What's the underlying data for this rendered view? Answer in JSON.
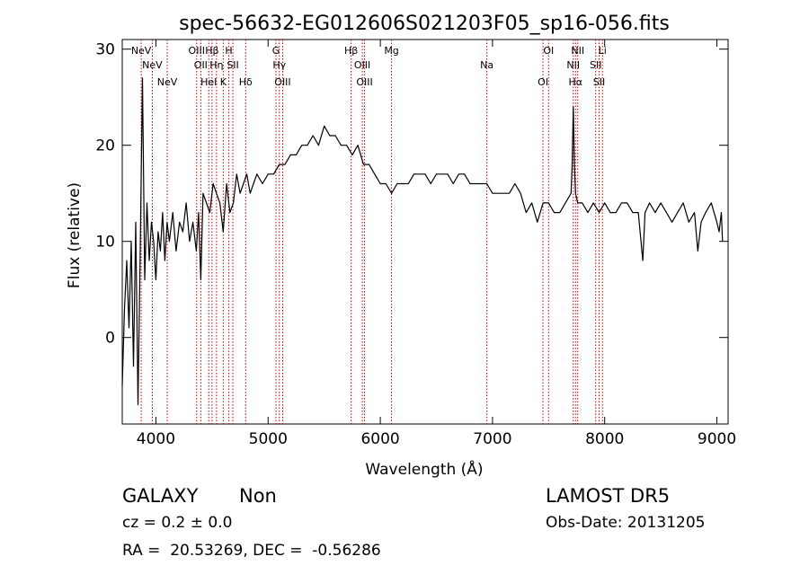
{
  "chart_data": {
    "type": "line",
    "title": "spec-56632-EG012606S021203F05_sp16-056.fits",
    "xlabel": "Wavelength (Å)",
    "ylabel": "Flux (relative)",
    "xlim": [
      3700,
      9100
    ],
    "ylim": [
      -9,
      31
    ],
    "x_ticks": [
      4000,
      5000,
      6000,
      7000,
      8000,
      9000
    ],
    "y_ticks": [
      0,
      10,
      20,
      30
    ],
    "grid": false,
    "line_color": "#000000",
    "marker_color": "#c00000",
    "series": [
      {
        "x": [
          3700,
          3720,
          3740,
          3760,
          3780,
          3800,
          3820,
          3840,
          3860,
          3880,
          3900,
          3920,
          3940,
          3960,
          3980,
          4000,
          4020,
          4040,
          4060,
          4080,
          4100,
          4120,
          4150,
          4180,
          4210,
          4240,
          4270,
          4300,
          4330,
          4360,
          4380,
          4400,
          4420,
          4450,
          4480,
          4510,
          4540,
          4570,
          4600,
          4630,
          4660,
          4690,
          4720,
          4750,
          4780,
          4810,
          4840,
          4870,
          4900,
          4950,
          5000,
          5050,
          5100,
          5150,
          5200,
          5250,
          5300,
          5350,
          5400,
          5450,
          5500,
          5550,
          5600,
          5650,
          5700,
          5750,
          5800,
          5850,
          5900,
          5950,
          6000,
          6050,
          6100,
          6150,
          6200,
          6250,
          6300,
          6350,
          6400,
          6450,
          6500,
          6550,
          6600,
          6650,
          6700,
          6750,
          6800,
          6850,
          6900,
          6950,
          7000,
          7050,
          7100,
          7150,
          7200,
          7250,
          7300,
          7350,
          7400,
          7450,
          7500,
          7550,
          7600,
          7650,
          7700,
          7710,
          7720,
          7730,
          7740,
          7760,
          7800,
          7850,
          7900,
          7950,
          8000,
          8050,
          8100,
          8150,
          8200,
          8250,
          8300,
          8340,
          8360,
          8400,
          8450,
          8500,
          8550,
          8600,
          8650,
          8700,
          8750,
          8800,
          8830,
          8860,
          8900,
          8950,
          9000,
          9020,
          9040,
          9050
        ],
        "y": [
          -5,
          3,
          8,
          1,
          10,
          -3,
          12,
          -7,
          9,
          27,
          6,
          14,
          8,
          12,
          10,
          6,
          11,
          9,
          13,
          8,
          12,
          10,
          13,
          9,
          12,
          11,
          14,
          10,
          12,
          9,
          13,
          6,
          15,
          14,
          13,
          16,
          15,
          14,
          11,
          16,
          13,
          14,
          17,
          15,
          16,
          17,
          15,
          16,
          17,
          16,
          17,
          17,
          18,
          18,
          19,
          19,
          20,
          20,
          21,
          20,
          22,
          21,
          21,
          20,
          20,
          19,
          20,
          18,
          18,
          17,
          16,
          16,
          15,
          16,
          16,
          16,
          17,
          17,
          17,
          16,
          17,
          17,
          17,
          16,
          17,
          17,
          16,
          16,
          16,
          16,
          15,
          15,
          15,
          15,
          16,
          15,
          13,
          14,
          12,
          14,
          14,
          13,
          13,
          14,
          15,
          18,
          24,
          18,
          15,
          14,
          14,
          13,
          14,
          13,
          14,
          13,
          13,
          14,
          14,
          13,
          13,
          8,
          13,
          14,
          13,
          14,
          13,
          12,
          13,
          14,
          12,
          13,
          9,
          12,
          13,
          14,
          12,
          11,
          13,
          10
        ]
      }
    ],
    "line_markers": [
      {
        "wavelength": 3869,
        "label": "NeV"
      },
      {
        "wavelength": 3968,
        "label": "NeV"
      },
      {
        "wavelength": 4101,
        "label": "NeV"
      },
      {
        "wavelength": 4363,
        "label": "OIII"
      },
      {
        "wavelength": 4400,
        "label": "OII"
      },
      {
        "wavelength": 4471,
        "label": "HeI"
      },
      {
        "wavelength": 4500,
        "label": "Hβ"
      },
      {
        "wavelength": 4540,
        "label": "Hη"
      },
      {
        "wavelength": 4600,
        "label": "K"
      },
      {
        "wavelength": 4650,
        "label": "H"
      },
      {
        "wavelength": 4686,
        "label": "SII"
      },
      {
        "wavelength": 4800,
        "label": "Hδ"
      },
      {
        "wavelength": 5070,
        "label": "G"
      },
      {
        "wavelength": 5100,
        "label": "Hγ"
      },
      {
        "wavelength": 5130,
        "label": "OIII"
      },
      {
        "wavelength": 5740,
        "label": "Hβ"
      },
      {
        "wavelength": 5840,
        "label": "OIII"
      },
      {
        "wavelength": 5860,
        "label": "OIII"
      },
      {
        "wavelength": 6100,
        "label": "Mg"
      },
      {
        "wavelength": 6950,
        "label": "Na"
      },
      {
        "wavelength": 7450,
        "label": "OI"
      },
      {
        "wavelength": 7500,
        "label": "OI"
      },
      {
        "wavelength": 7720,
        "label": "NII"
      },
      {
        "wavelength": 7740,
        "label": "Hα"
      },
      {
        "wavelength": 7760,
        "label": "NII"
      },
      {
        "wavelength": 7920,
        "label": "SII"
      },
      {
        "wavelength": 7950,
        "label": "SII"
      },
      {
        "wavelength": 7980,
        "label": "Li"
      }
    ]
  },
  "info": {
    "class": "GALAXY",
    "subclass": "Non",
    "survey": "LAMOST DR5",
    "cz": "cz = 0.2 ± 0.0",
    "obs_date": "Obs-Date: 20131205",
    "coords": "RA =  20.53269, DEC =  -0.56286"
  }
}
